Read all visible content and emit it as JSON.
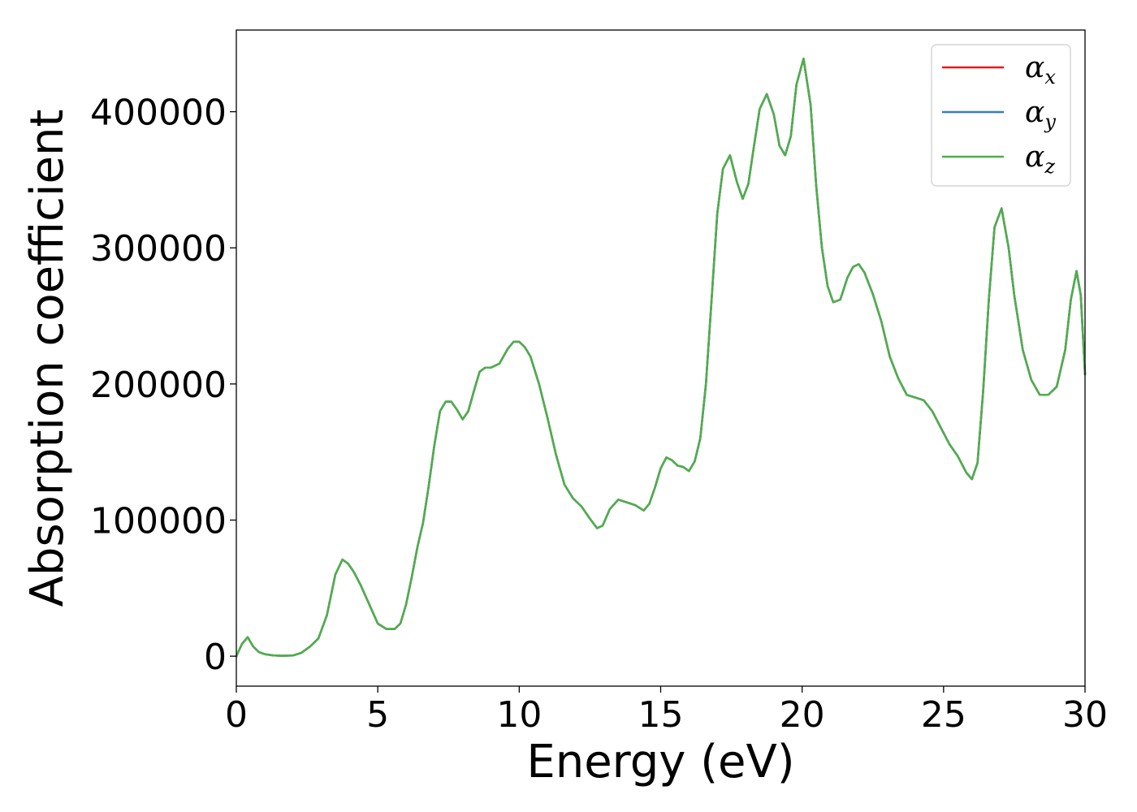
{
  "chart_data": {
    "type": "line",
    "title": "",
    "xlabel": "Energy (eV)",
    "ylabel": "Absorption coefficient",
    "xlim": [
      0,
      30
    ],
    "ylim": [
      -22000,
      460000
    ],
    "xticks": [
      0,
      5,
      10,
      15,
      20,
      25,
      30
    ],
    "yticks": [
      0,
      100000,
      200000,
      300000,
      400000
    ],
    "grid": false,
    "legend_position": "top-right",
    "series": [
      {
        "name": "αx",
        "symbol": "α",
        "subscript": "x",
        "color": "#e41a1c",
        "x": [
          0,
          0.2,
          0.4,
          0.6,
          0.8,
          1.0,
          1.3,
          1.6,
          2.0,
          2.3,
          2.6,
          2.9,
          3.2,
          3.5,
          3.75,
          3.95,
          4.15,
          4.4,
          4.7,
          5.0,
          5.3,
          5.6,
          5.8,
          6.0,
          6.2,
          6.4,
          6.6,
          6.8,
          7.0,
          7.2,
          7.4,
          7.6,
          7.8,
          8.0,
          8.2,
          8.4,
          8.6,
          8.8,
          9.0,
          9.3,
          9.6,
          9.8,
          10.0,
          10.2,
          10.4,
          10.7,
          11.0,
          11.3,
          11.6,
          11.9,
          12.2,
          12.5,
          12.75,
          12.95,
          13.2,
          13.5,
          13.8,
          14.1,
          14.4,
          14.6,
          14.8,
          15.0,
          15.2,
          15.4,
          15.6,
          15.8,
          16.0,
          16.2,
          16.4,
          16.6,
          16.8,
          17.0,
          17.2,
          17.45,
          17.7,
          17.9,
          18.1,
          18.3,
          18.5,
          18.75,
          19.0,
          19.2,
          19.4,
          19.6,
          19.8,
          20.05,
          20.3,
          20.5,
          20.7,
          20.9,
          21.1,
          21.35,
          21.6,
          21.8,
          22.0,
          22.2,
          22.5,
          22.8,
          23.1,
          23.4,
          23.7,
          24.0,
          24.3,
          24.6,
          24.9,
          25.2,
          25.5,
          25.8,
          26.0,
          26.2,
          26.4,
          26.6,
          26.8,
          27.05,
          27.3,
          27.5,
          27.8,
          28.1,
          28.4,
          28.7,
          29.0,
          29.3,
          29.5,
          29.7,
          29.85,
          30.0
        ],
        "values": [
          0,
          9000,
          14000,
          7000,
          3000,
          1500,
          600,
          300,
          500,
          2500,
          7000,
          13000,
          30000,
          60000,
          71000,
          68000,
          62000,
          52000,
          38000,
          24000,
          20000,
          20000,
          24000,
          38000,
          58000,
          80000,
          98000,
          125000,
          155000,
          180000,
          187000,
          187000,
          181000,
          174000,
          180000,
          195000,
          209000,
          212000,
          212000,
          215000,
          226000,
          231000,
          231000,
          227000,
          220000,
          200000,
          175000,
          148000,
          126000,
          116000,
          110000,
          101000,
          94000,
          96000,
          108000,
          115000,
          113000,
          111000,
          107000,
          112000,
          124000,
          138000,
          146000,
          144000,
          140000,
          139000,
          136000,
          143000,
          160000,
          200000,
          262000,
          325000,
          358000,
          368000,
          348000,
          336000,
          347000,
          375000,
          402000,
          413000,
          398000,
          375000,
          368000,
          382000,
          420000,
          439000,
          405000,
          345000,
          300000,
          272000,
          260000,
          262000,
          278000,
          286000,
          288000,
          282000,
          266000,
          246000,
          220000,
          204000,
          192000,
          190000,
          188000,
          180000,
          168000,
          156000,
          147000,
          135000,
          130000,
          142000,
          195000,
          262000,
          315000,
          329000,
          300000,
          265000,
          225000,
          203000,
          192000,
          192000,
          198000,
          225000,
          262000,
          283000,
          265000,
          207000
        ]
      },
      {
        "name": "αy",
        "symbol": "α",
        "subscript": "y",
        "color": "#377eb8",
        "same_as": "αx"
      },
      {
        "name": "αz",
        "symbol": "α",
        "subscript": "z",
        "color": "#4daf4a",
        "same_as": "αx"
      }
    ]
  }
}
